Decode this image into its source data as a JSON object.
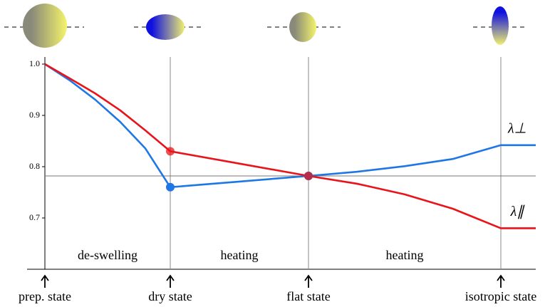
{
  "chart_data": {
    "type": "line",
    "categories": [
      "prep. state",
      null,
      null,
      null,
      null,
      "dry state",
      null,
      "flat state",
      null,
      null,
      null,
      "isotropic state",
      null
    ],
    "series": [
      {
        "name": "λ⊥",
        "color": "#1f77e6",
        "values": [
          1.0,
          0.968,
          0.931,
          0.8875,
          0.836,
          0.76,
          0.771,
          0.782,
          0.79,
          0.801,
          0.815,
          0.842,
          0.842
        ]
      },
      {
        "name": "λ∥",
        "color": "#e8141a",
        "values": [
          1.0,
          0.972,
          0.943,
          0.91,
          0.871,
          0.83,
          0.806,
          0.782,
          0.767,
          0.746,
          0.718,
          0.68,
          0.68
        ]
      }
    ],
    "ylim": [
      0.6,
      1.01
    ],
    "yticks": [
      0.7,
      0.8,
      0.9,
      {
        "value": 1,
        "label": "1.0"
      }
    ],
    "reference_line": 0.782,
    "annotations": [
      "de-swelling",
      "heating",
      "heating"
    ]
  }
}
